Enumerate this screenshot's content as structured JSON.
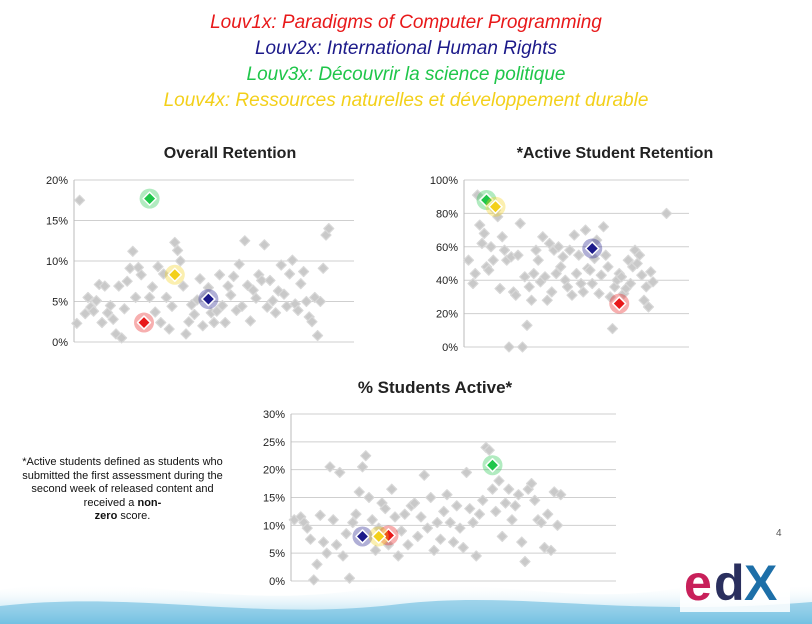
{
  "legend": [
    {
      "label": "Louv1x: Paradigms of Computer Programming",
      "color": "#e8191a"
    },
    {
      "label": "Louv2x: International Human Rights",
      "color": "#1c1a8a"
    },
    {
      "label": "Louv3x: Découvrir la science politique",
      "color": "#1fc64a"
    },
    {
      "label": "Louv4x: Ressources naturelles et développement durable",
      "color": "#f3d01a"
    }
  ],
  "footnote": {
    "part1": "*Active students defined as students who submitted the first assessment during the second week of released content and received a ",
    "bold1": "non-",
    "bold2": "zero",
    "part2": " score."
  },
  "page_number": "4",
  "logo": {
    "text": "edX",
    "colors": [
      "#c8205a",
      "#2a2f5e"
    ]
  },
  "chart_data": [
    {
      "type": "scatter",
      "title": "Overall Retention",
      "yticks": [
        "20%",
        "15%",
        "10%",
        "5%",
        "0%"
      ],
      "ylim": [
        0,
        20
      ],
      "xlim": [
        0,
        1
      ],
      "grid": true,
      "others": [
        [
          0.01,
          2.3
        ],
        [
          0.02,
          17.5
        ],
        [
          0.04,
          3.5
        ],
        [
          0.05,
          5.5
        ],
        [
          0.06,
          4.3
        ],
        [
          0.07,
          3.8
        ],
        [
          0.08,
          5.1
        ],
        [
          0.09,
          7.1
        ],
        [
          0.1,
          2.4
        ],
        [
          0.11,
          6.9
        ],
        [
          0.12,
          3.6
        ],
        [
          0.13,
          4.5
        ],
        [
          0.14,
          2.8
        ],
        [
          0.15,
          1.0
        ],
        [
          0.16,
          6.9
        ],
        [
          0.17,
          0.5
        ],
        [
          0.18,
          4.1
        ],
        [
          0.19,
          7.5
        ],
        [
          0.2,
          9.1
        ],
        [
          0.21,
          11.2
        ],
        [
          0.22,
          5.5
        ],
        [
          0.23,
          9.2
        ],
        [
          0.24,
          8.3
        ],
        [
          0.25,
          2.4
        ],
        [
          0.27,
          5.5
        ],
        [
          0.28,
          6.8
        ],
        [
          0.29,
          3.7
        ],
        [
          0.3,
          9.3
        ],
        [
          0.31,
          2.4
        ],
        [
          0.32,
          8.4
        ],
        [
          0.33,
          5.5
        ],
        [
          0.34,
          1.6
        ],
        [
          0.35,
          4.4
        ],
        [
          0.36,
          12.3
        ],
        [
          0.37,
          11.3
        ],
        [
          0.38,
          10.0
        ],
        [
          0.39,
          6.9
        ],
        [
          0.4,
          1.0
        ],
        [
          0.41,
          2.5
        ],
        [
          0.42,
          4.6
        ],
        [
          0.43,
          3.4
        ],
        [
          0.44,
          5.2
        ],
        [
          0.45,
          7.8
        ],
        [
          0.46,
          2.0
        ],
        [
          0.47,
          5.6
        ],
        [
          0.48,
          6.7
        ],
        [
          0.49,
          3.6
        ],
        [
          0.5,
          2.4
        ],
        [
          0.51,
          3.8
        ],
        [
          0.52,
          8.3
        ],
        [
          0.53,
          4.5
        ],
        [
          0.54,
          2.4
        ],
        [
          0.55,
          6.9
        ],
        [
          0.56,
          5.8
        ],
        [
          0.57,
          8.1
        ],
        [
          0.58,
          3.9
        ],
        [
          0.59,
          9.6
        ],
        [
          0.6,
          4.4
        ],
        [
          0.61,
          12.5
        ],
        [
          0.62,
          7.0
        ],
        [
          0.63,
          2.6
        ],
        [
          0.64,
          6.4
        ],
        [
          0.65,
          5.4
        ],
        [
          0.66,
          8.3
        ],
        [
          0.67,
          7.6
        ],
        [
          0.68,
          12.0
        ],
        [
          0.69,
          4.3
        ],
        [
          0.7,
          7.6
        ],
        [
          0.71,
          5.1
        ],
        [
          0.72,
          3.6
        ],
        [
          0.73,
          6.3
        ],
        [
          0.74,
          9.5
        ],
        [
          0.75,
          5.9
        ],
        [
          0.76,
          4.4
        ],
        [
          0.77,
          8.4
        ],
        [
          0.78,
          10.1
        ],
        [
          0.79,
          4.7
        ],
        [
          0.8,
          3.9
        ],
        [
          0.81,
          7.2
        ],
        [
          0.82,
          8.7
        ],
        [
          0.83,
          5.0
        ],
        [
          0.84,
          3.1
        ],
        [
          0.85,
          2.5
        ],
        [
          0.86,
          5.5
        ],
        [
          0.87,
          0.8
        ],
        [
          0.88,
          5.0
        ],
        [
          0.89,
          9.1
        ],
        [
          0.9,
          13.2
        ],
        [
          0.91,
          14.0
        ]
      ],
      "series": [
        {
          "name": "Louv1x",
          "point": [
            0.25,
            2.4
          ]
        },
        {
          "name": "Louv2x",
          "point": [
            0.48,
            5.3
          ]
        },
        {
          "name": "Louv3x",
          "point": [
            0.27,
            17.7
          ]
        },
        {
          "name": "Louv4x",
          "point": [
            0.36,
            8.3
          ]
        }
      ]
    },
    {
      "type": "scatter",
      "title": "*Active Student Retention",
      "yticks": [
        "100%",
        "80%",
        "60%",
        "40%",
        "20%",
        "0%"
      ],
      "ylim": [
        0,
        100
      ],
      "xlim": [
        0,
        1
      ],
      "grid": true,
      "others": [
        [
          0.02,
          52
        ],
        [
          0.04,
          38
        ],
        [
          0.05,
          44
        ],
        [
          0.06,
          91
        ],
        [
          0.07,
          73
        ],
        [
          0.08,
          62
        ],
        [
          0.09,
          68
        ],
        [
          0.1,
          48
        ],
        [
          0.11,
          46
        ],
        [
          0.12,
          60
        ],
        [
          0.13,
          52
        ],
        [
          0.14,
          82
        ],
        [
          0.15,
          78
        ],
        [
          0.16,
          35
        ],
        [
          0.17,
          66
        ],
        [
          0.18,
          58
        ],
        [
          0.19,
          52
        ],
        [
          0.2,
          0
        ],
        [
          0.21,
          54
        ],
        [
          0.22,
          33
        ],
        [
          0.23,
          31
        ],
        [
          0.24,
          55
        ],
        [
          0.25,
          74
        ],
        [
          0.26,
          0
        ],
        [
          0.27,
          42
        ],
        [
          0.28,
          13
        ],
        [
          0.29,
          36
        ],
        [
          0.3,
          28
        ],
        [
          0.31,
          44
        ],
        [
          0.32,
          58
        ],
        [
          0.33,
          52
        ],
        [
          0.34,
          39
        ],
        [
          0.35,
          66
        ],
        [
          0.36,
          42
        ],
        [
          0.37,
          28
        ],
        [
          0.38,
          62
        ],
        [
          0.39,
          33
        ],
        [
          0.4,
          58
        ],
        [
          0.41,
          44
        ],
        [
          0.42,
          60
        ],
        [
          0.43,
          48
        ],
        [
          0.44,
          54
        ],
        [
          0.45,
          40
        ],
        [
          0.46,
          36
        ],
        [
          0.47,
          58
        ],
        [
          0.48,
          31
        ],
        [
          0.49,
          67
        ],
        [
          0.5,
          44
        ],
        [
          0.51,
          55
        ],
        [
          0.52,
          38
        ],
        [
          0.53,
          33
        ],
        [
          0.54,
          70
        ],
        [
          0.55,
          47
        ],
        [
          0.56,
          46
        ],
        [
          0.57,
          38
        ],
        [
          0.58,
          53
        ],
        [
          0.59,
          64
        ],
        [
          0.6,
          32
        ],
        [
          0.61,
          43
        ],
        [
          0.62,
          72
        ],
        [
          0.63,
          55
        ],
        [
          0.64,
          48
        ],
        [
          0.65,
          30
        ],
        [
          0.66,
          11
        ],
        [
          0.67,
          36
        ],
        [
          0.68,
          40
        ],
        [
          0.69,
          44
        ],
        [
          0.7,
          42
        ],
        [
          0.71,
          32
        ],
        [
          0.72,
          35
        ],
        [
          0.73,
          52
        ],
        [
          0.74,
          38
        ],
        [
          0.75,
          48
        ],
        [
          0.76,
          58
        ],
        [
          0.77,
          50
        ],
        [
          0.78,
          55
        ],
        [
          0.79,
          43
        ],
        [
          0.8,
          28
        ],
        [
          0.81,
          36
        ],
        [
          0.82,
          24
        ],
        [
          0.83,
          45
        ],
        [
          0.84,
          39
        ],
        [
          0.9,
          80
        ]
      ],
      "series": [
        {
          "name": "Louv1x",
          "point": [
            0.69,
            26
          ]
        },
        {
          "name": "Louv2x",
          "point": [
            0.57,
            59
          ]
        },
        {
          "name": "Louv3x",
          "point": [
            0.1,
            88
          ]
        },
        {
          "name": "Louv4x",
          "point": [
            0.14,
            84
          ]
        }
      ]
    },
    {
      "type": "scatter",
      "title": "% Students Active*",
      "yticks": [
        "30%",
        "25%",
        "20%",
        "15%",
        "10%",
        "5%",
        "0%"
      ],
      "ylim": [
        0,
        30
      ],
      "xlim": [
        0,
        1
      ],
      "grid": true,
      "others": [
        [
          0.01,
          11.0
        ],
        [
          0.03,
          11.5
        ],
        [
          0.04,
          10.5
        ],
        [
          0.05,
          9.5
        ],
        [
          0.06,
          7.5
        ],
        [
          0.07,
          0.2
        ],
        [
          0.08,
          3.0
        ],
        [
          0.09,
          11.8
        ],
        [
          0.1,
          7.0
        ],
        [
          0.11,
          5.0
        ],
        [
          0.12,
          20.5
        ],
        [
          0.13,
          11.0
        ],
        [
          0.14,
          6.5
        ],
        [
          0.15,
          19.5
        ],
        [
          0.16,
          4.5
        ],
        [
          0.17,
          8.5
        ],
        [
          0.18,
          0.5
        ],
        [
          0.19,
          10.5
        ],
        [
          0.2,
          12.0
        ],
        [
          0.21,
          16.0
        ],
        [
          0.22,
          20.5
        ],
        [
          0.23,
          22.5
        ],
        [
          0.24,
          15.0
        ],
        [
          0.25,
          11.0
        ],
        [
          0.26,
          5.5
        ],
        [
          0.27,
          9.5
        ],
        [
          0.28,
          14.0
        ],
        [
          0.29,
          13.0
        ],
        [
          0.3,
          6.5
        ],
        [
          0.31,
          16.5
        ],
        [
          0.32,
          11.5
        ],
        [
          0.33,
          4.5
        ],
        [
          0.34,
          9.0
        ],
        [
          0.35,
          12.0
        ],
        [
          0.36,
          6.5
        ],
        [
          0.37,
          13.5
        ],
        [
          0.38,
          14.0
        ],
        [
          0.39,
          8.0
        ],
        [
          0.4,
          11.5
        ],
        [
          0.41,
          19.0
        ],
        [
          0.42,
          9.5
        ],
        [
          0.43,
          15.0
        ],
        [
          0.44,
          5.5
        ],
        [
          0.45,
          10.5
        ],
        [
          0.46,
          7.5
        ],
        [
          0.47,
          12.5
        ],
        [
          0.48,
          15.5
        ],
        [
          0.49,
          10.5
        ],
        [
          0.5,
          7.0
        ],
        [
          0.51,
          13.5
        ],
        [
          0.52,
          9.5
        ],
        [
          0.53,
          6.0
        ],
        [
          0.54,
          19.5
        ],
        [
          0.55,
          13.0
        ],
        [
          0.56,
          10.5
        ],
        [
          0.57,
          4.5
        ],
        [
          0.58,
          12.0
        ],
        [
          0.59,
          14.5
        ],
        [
          0.6,
          24.0
        ],
        [
          0.61,
          23.5
        ],
        [
          0.62,
          16.5
        ],
        [
          0.63,
          12.5
        ],
        [
          0.64,
          18.0
        ],
        [
          0.65,
          8.0
        ],
        [
          0.66,
          14.0
        ],
        [
          0.67,
          16.5
        ],
        [
          0.68,
          11.0
        ],
        [
          0.69,
          13.5
        ],
        [
          0.7,
          15.5
        ],
        [
          0.71,
          7.0
        ],
        [
          0.72,
          3.5
        ],
        [
          0.73,
          16.5
        ],
        [
          0.74,
          17.5
        ],
        [
          0.75,
          14.5
        ],
        [
          0.76,
          11.0
        ],
        [
          0.77,
          10.5
        ],
        [
          0.78,
          6.0
        ],
        [
          0.79,
          12.0
        ],
        [
          0.8,
          5.5
        ],
        [
          0.81,
          16.0
        ],
        [
          0.82,
          10.0
        ],
        [
          0.83,
          15.5
        ]
      ],
      "series": [
        {
          "name": "Louv1x",
          "point": [
            0.3,
            8.2
          ]
        },
        {
          "name": "Louv2x",
          "point": [
            0.22,
            8.0
          ]
        },
        {
          "name": "Louv3x",
          "point": [
            0.62,
            20.8
          ]
        },
        {
          "name": "Louv4x",
          "point": [
            0.27,
            8.0
          ]
        }
      ]
    }
  ]
}
